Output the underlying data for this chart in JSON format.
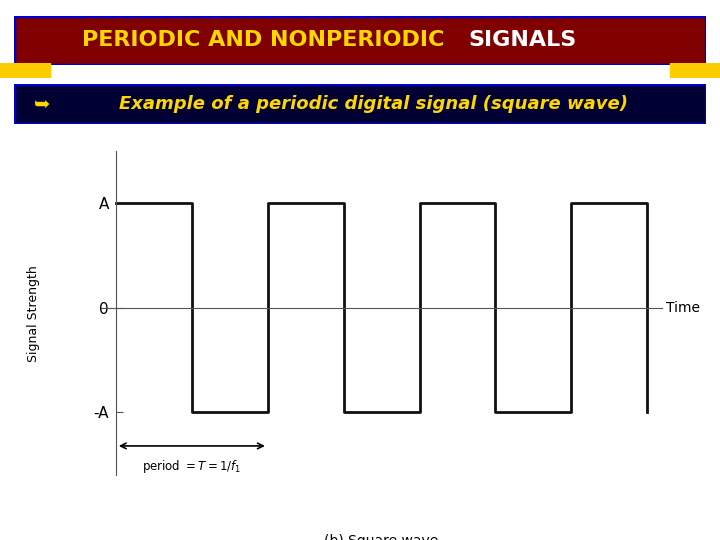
{
  "title_yellow": "PERIODIC AND NONPERIODIC",
  "title_white": " SIGNALS",
  "subtitle_icon": "➥",
  "subtitle_text": "Example of a periodic digital signal (square wave)",
  "bg_color": "#ffffff",
  "title_bg": "#800000",
  "title_border": "#0000cc",
  "subtitle_bg": "#000033",
  "subtitle_border": "#0000cc",
  "stripe_orange": "#ff4400",
  "stripe_yellow": "#ffcc00",
  "ylabel": "Signal Strength",
  "xlabel_time": "Time",
  "ytick_labels": [
    "A",
    "0",
    "-A"
  ],
  "ytick_vals": [
    1,
    0,
    -1
  ],
  "caption": "(b) Square wave",
  "wave_color": "#111111",
  "axis_color": "#555555",
  "plot_bg": "#ffffff",
  "amplitude": 1.0,
  "period": 2.0,
  "x_start": 0.0,
  "x_end": 7.0,
  "ylim": [
    -1.6,
    1.5
  ],
  "xlim": [
    -0.2,
    7.2
  ]
}
